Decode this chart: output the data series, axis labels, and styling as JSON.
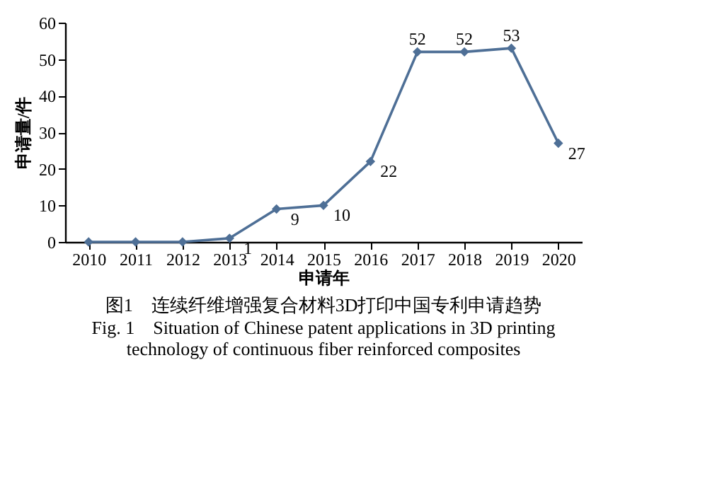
{
  "chart_data": {
    "type": "line",
    "title": "图1　连续纤维增强复合材料3D打印中国专利申请趋势",
    "subtitle": "Fig. 1　Situation of Chinese patent applications in 3D printing\ntechnology of continuous fiber reinforced composites",
    "xlabel": "申请年",
    "ylabel": "申请量/件",
    "categories": [
      "2010",
      "2011",
      "2012",
      "2013",
      "2014",
      "2015",
      "2016",
      "2017",
      "2018",
      "2019",
      "2020"
    ],
    "series": [
      {
        "color": "#4e6f96",
        "values": [
          0,
          0,
          0,
          1,
          9,
          10,
          22,
          52,
          52,
          53,
          27
        ],
        "value_labels": [
          null,
          null,
          null,
          "1",
          "9",
          "10",
          "22",
          "52",
          "52",
          "53",
          "27"
        ]
      }
    ],
    "ylim": [
      0,
      60
    ],
    "yticks": [
      0,
      10,
      20,
      30,
      40,
      50,
      60
    ],
    "grid": false,
    "marker": "diamond",
    "line_style": "solid"
  }
}
